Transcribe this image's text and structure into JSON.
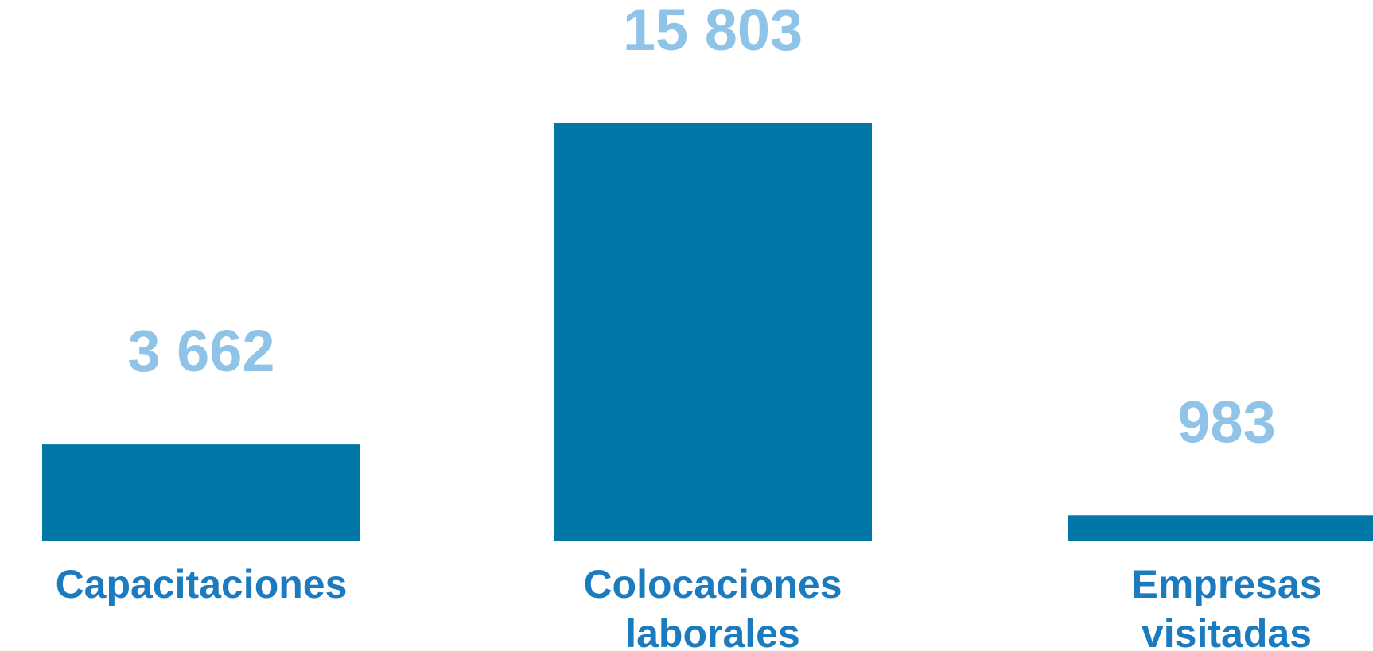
{
  "chart_data": {
    "type": "bar",
    "categories": [
      "Capacitaciones",
      "Colocaciones laborales",
      "Empresas visitadas"
    ],
    "category_lines": [
      [
        "Capacitaciones"
      ],
      [
        "Colocaciones",
        "laborales"
      ],
      [
        "Empresas",
        "visitadas"
      ]
    ],
    "values": [
      3662,
      15803,
      983
    ],
    "value_labels": [
      "3 662",
      "15 803",
      "983"
    ],
    "colors": {
      "bar": "#0077a6",
      "value_label": "#8fc3e8",
      "category_label": "#1c7bbf"
    }
  }
}
